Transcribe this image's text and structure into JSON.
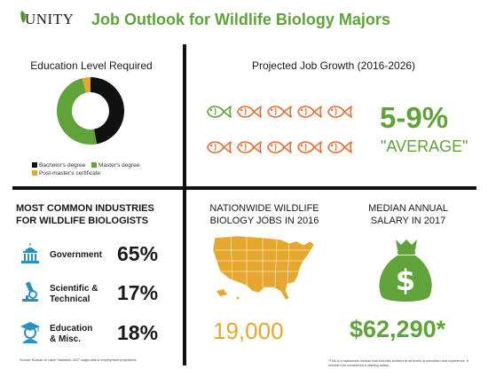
{
  "header": {
    "logo_text": "UNITY",
    "title": "Job Outlook for Wildlife Biology Majors"
  },
  "education": {
    "heading": "Education Level Required",
    "legend": [
      {
        "label": "Bachelor's degree",
        "color": "#111111"
      },
      {
        "label": "Master's degree",
        "color": "#5fa33a"
      },
      {
        "label": "Post-master's certificate",
        "color": "#e6a72e"
      }
    ]
  },
  "growth": {
    "heading": "Projected Job Growth (2016-2026)",
    "value": "5-9%",
    "label": "\"AVERAGE\"",
    "fish_total": 10,
    "fish_highlighted": 1,
    "colors": {
      "highlight": "#5fa33a",
      "default": "#e0703a"
    }
  },
  "industries": {
    "heading_line1": "MOST COMMON INDUSTRIES",
    "heading_line2": "FOR WILDLIFE BIOLOGISTS",
    "rows": [
      {
        "label_line1": "Government",
        "label_line2": "",
        "value": "65%",
        "icon": "capitol-icon"
      },
      {
        "label_line1": "Scientific &",
        "label_line2": "Technical",
        "value": "17%",
        "icon": "microscope-icon"
      },
      {
        "label_line1": "Education",
        "label_line2": "& Misc.",
        "value": "18%",
        "icon": "graduate-icon"
      }
    ]
  },
  "jobs": {
    "heading_line1": "NATIONWIDE WILDLIFE",
    "heading_line2": "BIOLOGY JOBS IN 2016",
    "value": "19,000",
    "map_color": "#e6a72e"
  },
  "salary": {
    "heading_line1": "MEDIAN ANNUAL",
    "heading_line2": "SALARY IN 2017",
    "value": "$62,290*",
    "bag_color": "#5fa33a"
  },
  "footer": {
    "source": "Source: Bureau of Labor Statistics, 2017 wage data & employment projections",
    "footnote": "*This is a nationwide median that includes workers at all levels of education and experience. It shouldn't be considered a starting salary."
  },
  "chart_data": {
    "type": "pie",
    "title": "Education Level Required",
    "categories": [
      "Bachelor's degree",
      "Master's degree",
      "Post-master's certificate"
    ],
    "values": [
      47,
      49,
      4
    ],
    "colors": [
      "#111111",
      "#5fa33a",
      "#e6a72e"
    ],
    "legend_placement": "bottom"
  }
}
